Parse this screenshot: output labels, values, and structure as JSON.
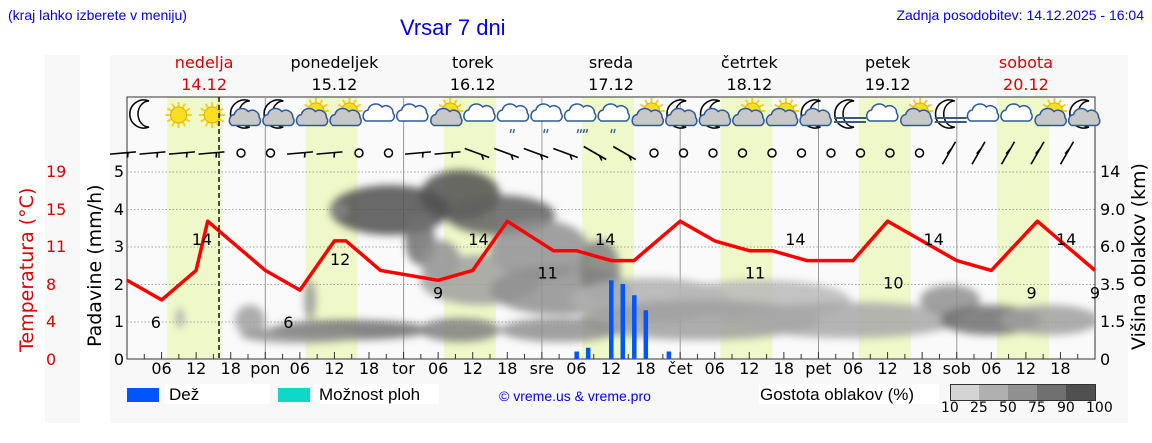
{
  "header": {
    "menu_hint": "(kraj lahko izberete v meniju)",
    "title": "Vrsar 7 dni",
    "last_update": "Zadnja posodobitev: 14.12.2025 - 16:04"
  },
  "days": [
    {
      "name": "nedelja",
      "date": "14.12",
      "weekend": true
    },
    {
      "name": "ponedeljek",
      "date": "15.12",
      "weekend": false
    },
    {
      "name": "torek",
      "date": "16.12",
      "weekend": false
    },
    {
      "name": "sreda",
      "date": "17.12",
      "weekend": false
    },
    {
      "name": "četrtek",
      "date": "18.12",
      "weekend": false
    },
    {
      "name": "petek",
      "date": "19.12",
      "weekend": false
    },
    {
      "name": "sobota",
      "date": "20.12",
      "weekend": true
    }
  ],
  "axes": {
    "temp_label": "Temperatura (°C)",
    "precip_label": "Padavine (mm/h)",
    "cloud_height_label": "Višina oblakov (km)",
    "temp_ticks": [
      "19",
      "15",
      "11",
      "8",
      "4",
      "0"
    ],
    "precip_ticks": [
      "5",
      "4",
      "3",
      "2",
      "1",
      "0"
    ],
    "cloud_height_ticks": [
      "14",
      "9.0",
      "6.0",
      "3.5",
      "1.5",
      "0"
    ],
    "x_ticks": [
      "06",
      "12",
      "18",
      "pon",
      "06",
      "12",
      "18",
      "tor",
      "06",
      "12",
      "18",
      "sre",
      "06",
      "12",
      "18",
      "čet",
      "06",
      "12",
      "18",
      "pet",
      "06",
      "12",
      "18",
      "sob",
      "06",
      "12",
      "18"
    ]
  },
  "legend": {
    "rain_label": "Dež",
    "rain_color": "#0055ff",
    "showers_label": "Možnost ploh",
    "showers_color": "#10d8c8",
    "copyright": "© vreme.us & vreme.pro",
    "cloud_density_label": "Gostota oblakov (%)",
    "cloud_density_ticks": [
      "10",
      "25",
      "50",
      "75",
      "90",
      "100"
    ],
    "cloud_density_colors": [
      "#d4d4d4",
      "#b0b0b0",
      "#909090",
      "#707070",
      "#505050"
    ]
  },
  "weather_icons": [
    "moon",
    "sun",
    "sun",
    "moon-cloud",
    "moon-cloud",
    "sun-cloud",
    "sun-cloud",
    "cloud",
    "cloud",
    "sun-cloud",
    "cloud",
    "cloud-drizzle",
    "cloud-drizzle",
    "cloud-rain",
    "cloud-drizzle",
    "sun-cloud",
    "moon-cloud",
    "moon-cloud",
    "sun-cloud",
    "sun-cloud",
    "moon-cloud",
    "moon-fog",
    "cloud",
    "sun-cloud",
    "moon-fog",
    "cloud",
    "cloud",
    "sun-cloud",
    "moon-cloud"
  ],
  "chart_data": {
    "type": "line",
    "title": "Vrsar 7 dni",
    "xlabel": "",
    "ylabel": "Temperatura (°C)",
    "ylim": [
      0,
      19
    ],
    "series": [
      {
        "name": "Temperatura (°C)",
        "color": "#ff0000",
        "x_hours": [
          0,
          6,
          12,
          14,
          18,
          24,
          30,
          36,
          38,
          44,
          54,
          60,
          66,
          74,
          78,
          84,
          88,
          96,
          102,
          108,
          112,
          118,
          126,
          132,
          138,
          144,
          150,
          158,
          162,
          168
        ],
        "values": [
          8,
          6,
          9,
          14,
          12,
          9,
          7,
          12,
          12,
          9,
          8,
          9,
          14,
          11,
          11,
          10,
          10,
          14,
          12,
          11,
          11,
          10,
          10,
          14,
          12,
          10,
          9,
          14,
          12,
          9
        ]
      },
      {
        "name": "Padavine (mm/h)",
        "type": "bar",
        "color": "#0055ff",
        "x_hours": [
          78,
          80,
          84,
          86,
          88,
          90,
          94
        ],
        "values": [
          0.2,
          0.3,
          2.1,
          2.0,
          1.7,
          1.3,
          0.2
        ]
      }
    ],
    "min_max_labels": [
      {
        "x_hours": 5,
        "value": 6
      },
      {
        "x_hours": 13,
        "value": 14
      },
      {
        "x_hours": 28,
        "value": 6
      },
      {
        "x_hours": 37,
        "value": 12
      },
      {
        "x_hours": 54,
        "value": 9
      },
      {
        "x_hours": 61,
        "value": 14
      },
      {
        "x_hours": 73,
        "value": 11
      },
      {
        "x_hours": 83,
        "value": 14
      },
      {
        "x_hours": 109,
        "value": 11
      },
      {
        "x_hours": 116,
        "value": 14
      },
      {
        "x_hours": 133,
        "value": 10
      },
      {
        "x_hours": 140,
        "value": 14
      },
      {
        "x_hours": 157,
        "value": 9
      },
      {
        "x_hours": 163,
        "value": 14
      },
      {
        "x_hours": 168,
        "value": 9
      }
    ],
    "secondary_axes": {
      "precip_ylim": [
        0,
        5
      ],
      "cloud_height_km_ticks": [
        0,
        1.5,
        3.5,
        6.0,
        9.0,
        14
      ]
    },
    "daylight_bands_hours": [
      [
        7,
        16.5
      ],
      [
        31,
        40
      ],
      [
        55,
        64
      ],
      [
        79,
        88
      ],
      [
        103,
        112
      ],
      [
        127,
        136
      ],
      [
        151,
        160
      ]
    ],
    "now_marker_hours": 16,
    "grid": true
  }
}
